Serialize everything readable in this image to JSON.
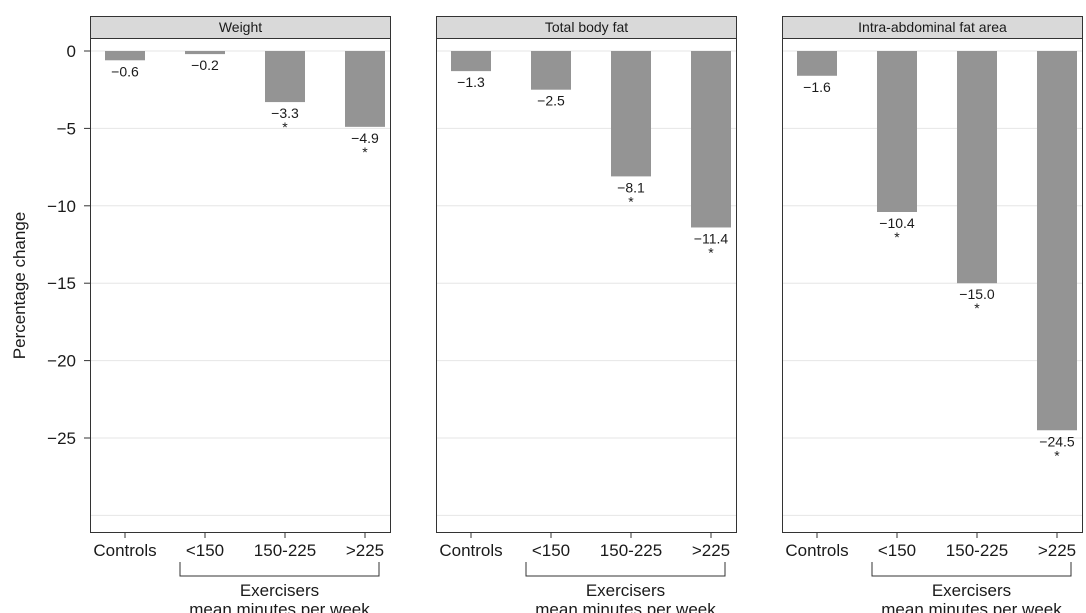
{
  "chart_data": {
    "type": "bar",
    "ylabel": "Percentage change",
    "ylim": [
      -30,
      1.5
    ],
    "yticks": [
      0,
      -5,
      -10,
      -15,
      -20,
      -25
    ],
    "ytick_labels": [
      "0",
      "−5",
      "−10",
      "−15",
      "−20",
      "−25"
    ],
    "grid": true,
    "categories": [
      "Controls",
      "<150",
      "150-225",
      ">225"
    ],
    "group_label_line1": "Exercisers",
    "group_label_line2": "mean minutes per week",
    "significance_marker": "*",
    "bar_color": "#949494",
    "panel_header_color": "#d9d9d9",
    "panels": [
      {
        "title": "Weight",
        "values": [
          -0.6,
          -0.2,
          -3.3,
          -4.9
        ],
        "value_labels": [
          "−0.6",
          "−0.2",
          "−3.3",
          "−4.9"
        ],
        "significant": [
          false,
          false,
          true,
          true
        ]
      },
      {
        "title": "Total body fat",
        "values": [
          -1.3,
          -2.5,
          -8.1,
          -11.4
        ],
        "value_labels": [
          "−1.3",
          "−2.5",
          "−8.1",
          "−11.4"
        ],
        "significant": [
          false,
          false,
          true,
          true
        ]
      },
      {
        "title": "Intra-abdominal fat area",
        "values": [
          -1.6,
          -10.4,
          -15.0,
          -24.5
        ],
        "value_labels": [
          "−1.6",
          "−10.4",
          "−15.0",
          "−24.5"
        ],
        "significant": [
          false,
          true,
          true,
          true
        ]
      }
    ]
  }
}
